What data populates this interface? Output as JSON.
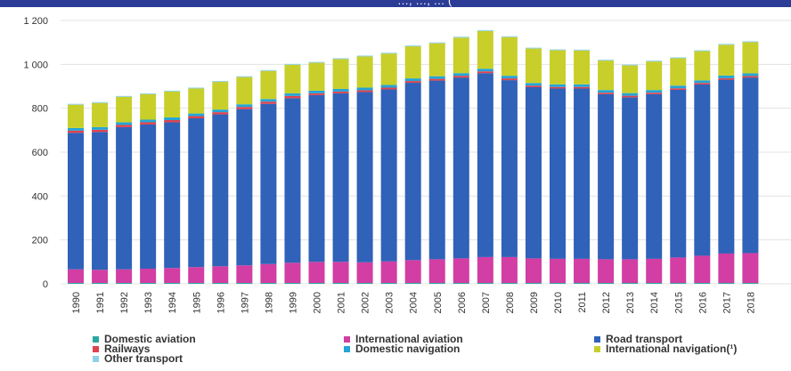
{
  "header": {
    "partial_text": "…, …, … ("
  },
  "colors": {
    "banner": "#2b3c96",
    "grid": "#e3e3e3"
  },
  "chart_data": {
    "type": "bar",
    "stacked": true,
    "categories": [
      "1990",
      "1991",
      "1992",
      "1993",
      "1994",
      "1995",
      "1996",
      "1997",
      "1998",
      "1999",
      "2000",
      "2001",
      "2002",
      "2003",
      "2004",
      "2005",
      "2006",
      "2007",
      "2008",
      "2009",
      "2010",
      "2011",
      "2012",
      "2013",
      "2014",
      "2015",
      "2016",
      "2017",
      "2018"
    ],
    "ylim": [
      0,
      1200
    ],
    "yticks": [
      0,
      200,
      400,
      600,
      800,
      1000,
      1200
    ],
    "ytick_labels": [
      "0",
      "200",
      "400",
      "600",
      "800",
      "1 000",
      "1 200"
    ],
    "grid": true,
    "legend_position": "bottom",
    "series": [
      {
        "name": "Domestic aviation",
        "color": "#2aa7a0",
        "values": [
          4,
          4,
          4,
          4,
          4,
          4,
          4,
          4,
          4,
          4,
          4,
          4,
          4,
          4,
          4,
          4,
          4,
          4,
          4,
          4,
          4,
          4,
          4,
          4,
          4,
          4,
          4,
          4,
          4
        ]
      },
      {
        "name": "International aviation",
        "color": "#d23ea3",
        "values": [
          62,
          60,
          62,
          65,
          68,
          72,
          76,
          80,
          86,
          92,
          96,
          96,
          94,
          98,
          104,
          108,
          112,
          118,
          118,
          112,
          110,
          110,
          108,
          108,
          110,
          116,
          124,
          134,
          136
        ]
      },
      {
        "name": "Road transport",
        "color": "#2f62b8",
        "values": [
          622,
          628,
          648,
          657,
          664,
          678,
          692,
          712,
          730,
          750,
          760,
          768,
          776,
          784,
          808,
          814,
          824,
          838,
          806,
          780,
          776,
          776,
          752,
          738,
          750,
          764,
          780,
          792,
          800
        ]
      },
      {
        "name": "Railways",
        "color": "#e0424e",
        "values": [
          10,
          10,
          10,
          10,
          10,
          10,
          10,
          10,
          10,
          10,
          8,
          8,
          8,
          8,
          8,
          8,
          8,
          8,
          8,
          7,
          7,
          7,
          7,
          7,
          7,
          7,
          7,
          7,
          7
        ]
      },
      {
        "name": "Domestic navigation",
        "color": "#25a4d6",
        "values": [
          12,
          12,
          12,
          12,
          12,
          12,
          12,
          12,
          12,
          12,
          12,
          12,
          12,
          12,
          12,
          12,
          12,
          12,
          12,
          12,
          12,
          12,
          12,
          12,
          12,
          12,
          12,
          12,
          12
        ]
      },
      {
        "name": "International navigation(¹)",
        "color": "#c8cf2a",
        "values": [
          106,
          110,
          116,
          116,
          118,
          114,
          126,
          124,
          128,
          130,
          127,
          136,
          142,
          143,
          146,
          150,
          162,
          172,
          176,
          157,
          155,
          154,
          134,
          126,
          130,
          125,
          133,
          140,
          142
        ]
      },
      {
        "name": "Other transport",
        "color": "#8ed0e8",
        "values": [
          4,
          4,
          4,
          4,
          4,
          4,
          4,
          4,
          4,
          4,
          4,
          4,
          4,
          4,
          4,
          4,
          4,
          4,
          4,
          4,
          4,
          4,
          4,
          4,
          4,
          4,
          4,
          4,
          4
        ]
      }
    ]
  },
  "legend": {
    "items": [
      {
        "label": "Domestic aviation",
        "color": "#2aa7a0"
      },
      {
        "label": "International aviation",
        "color": "#d23ea3"
      },
      {
        "label": "Road transport",
        "color": "#2f62b8"
      },
      {
        "label": "Railways",
        "color": "#e0424e"
      },
      {
        "label": "Domestic navigation",
        "color": "#25a4d6"
      },
      {
        "label": "International navigation(¹)",
        "color": "#c8cf2a"
      },
      {
        "label": "Other transport",
        "color": "#8ed0e8"
      }
    ]
  }
}
